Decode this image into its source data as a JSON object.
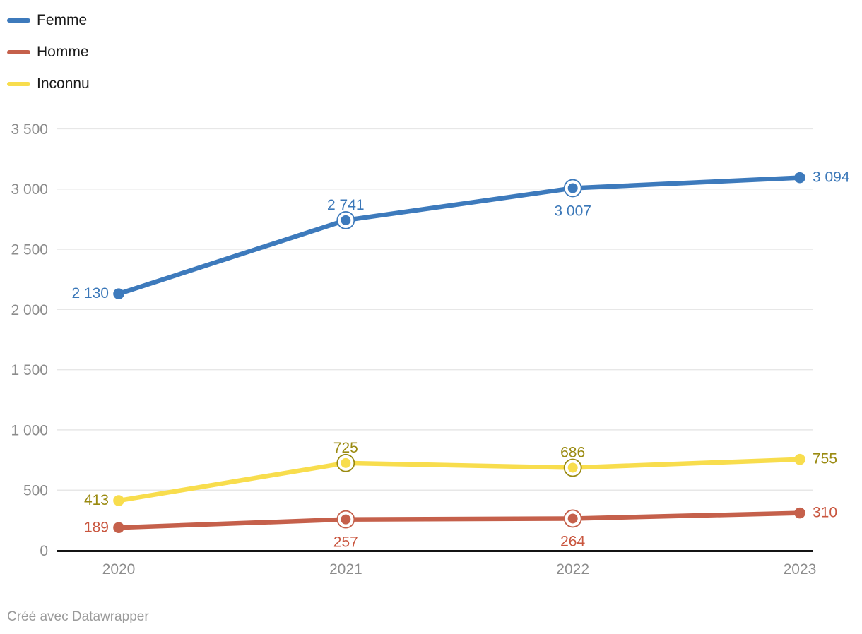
{
  "legend": {
    "items": [
      {
        "id": "femme",
        "label": "Femme",
        "color": "#3D7ABC"
      },
      {
        "id": "homme",
        "label": "Homme",
        "color": "#C5604B"
      },
      {
        "id": "inconnu",
        "label": "Inconnu",
        "color": "#F8DD4D"
      }
    ]
  },
  "footer": {
    "text": "Créé avec Datawrapper"
  },
  "chart_data": {
    "type": "line",
    "title": "",
    "xlabel": "",
    "ylabel": "",
    "categories": [
      "2020",
      "2021",
      "2022",
      "2023"
    ],
    "series": [
      {
        "name": "Femme",
        "values": [
          2130,
          2741,
          3007,
          3094
        ],
        "value_labels": [
          "2 130",
          "2 741",
          "3 007",
          "3 094"
        ],
        "label_placement": [
          "left",
          "above",
          "below",
          "right"
        ],
        "color": "#3D7ABC",
        "label_color": "#3A77B8",
        "ring_color": "#3D7ABC"
      },
      {
        "name": "Homme",
        "values": [
          189,
          257,
          264,
          310
        ],
        "value_labels": [
          "189",
          "257",
          "264",
          "310"
        ],
        "label_placement": [
          "left",
          "below",
          "below",
          "right"
        ],
        "color": "#C5604B",
        "label_color": "#C9563F",
        "ring_color": "#C5604B"
      },
      {
        "name": "Inconnu",
        "values": [
          413,
          725,
          686,
          755
        ],
        "value_labels": [
          "413",
          "725",
          "686",
          "755"
        ],
        "label_placement": [
          "left",
          "above",
          "above",
          "right"
        ],
        "color": "#F8DD4D",
        "label_color": "#9A8A10",
        "ring_color": "#9A8A10"
      }
    ],
    "ring_markers": [
      false,
      true,
      true,
      false
    ],
    "yticks": [
      0,
      500,
      1000,
      1500,
      2000,
      2500,
      3000,
      3500
    ],
    "ytick_labels": [
      "0",
      "500",
      "1 000",
      "1 500",
      "2 000",
      "2 500",
      "3 000",
      "3 500"
    ],
    "ylim": [
      0,
      3500
    ],
    "grid": true,
    "legend_position": "top-left",
    "colors": {
      "gridline": "#e7e7e7",
      "baseline": "#141414",
      "tick_text": "#8c8c8c"
    }
  }
}
